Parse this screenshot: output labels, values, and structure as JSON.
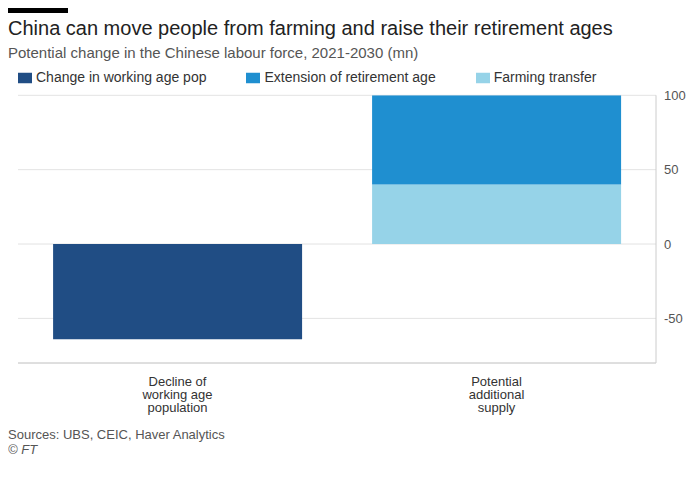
{
  "chart_data": {
    "type": "bar",
    "title": "China can move people from farming and raise their retirement ages",
    "subtitle": "Potential change in the Chinese labour force, 2021-2030 (mn)",
    "source": "Sources: UBS, CEIC, Haver Analytics",
    "credit": "© FT",
    "categories": [
      "Decline of working age population",
      "Potential additional supply"
    ],
    "series": [
      {
        "name": "Change in working age pop",
        "color": "#204d84",
        "values": [
          -64,
          null
        ]
      },
      {
        "name": "Farming transfer",
        "color": "#96d3e8",
        "values": [
          null,
          40
        ]
      },
      {
        "name": "Extension of retirement age",
        "color": "#1f8fd0",
        "values": [
          null,
          60
        ]
      }
    ],
    "ylim": [
      -80,
      100
    ],
    "yticks": [
      -50,
      0,
      50,
      100
    ],
    "grid": true,
    "stacked": true,
    "legend": "top-left"
  }
}
